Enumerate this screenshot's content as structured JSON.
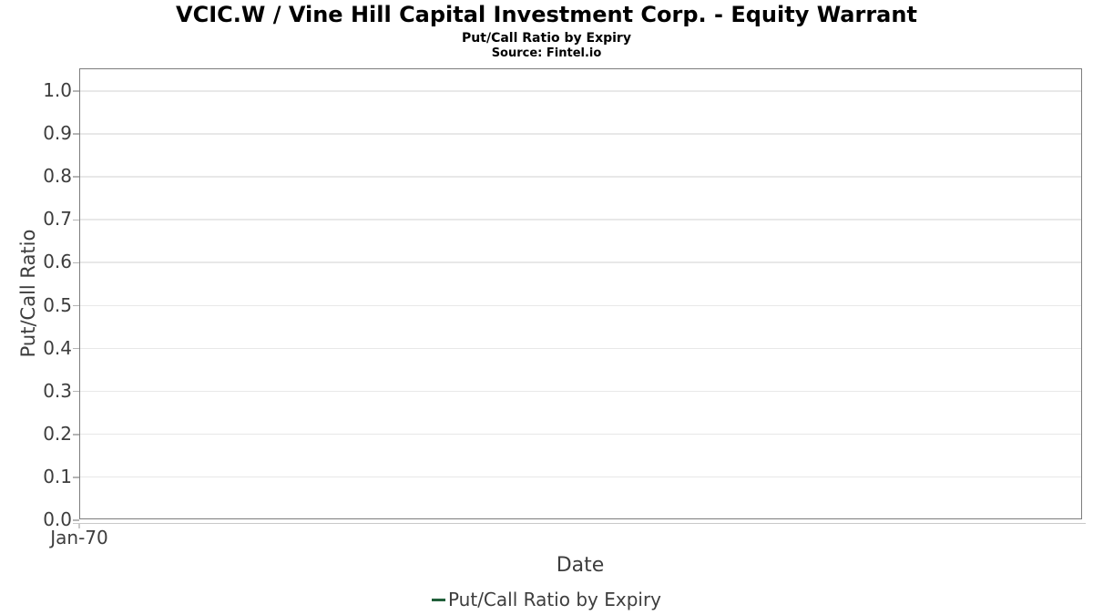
{
  "chart_data": {
    "type": "line",
    "title": "VCIC.W / Vine Hill Capital Investment Corp. - Equity Warrant",
    "subtitle": "Put/Call Ratio by Expiry",
    "source": "Source: Fintel.io",
    "xlabel": "Date",
    "ylabel": "Put/Call Ratio",
    "x_tick_labels": [
      "Jan-70"
    ],
    "y_tick_labels": [
      "0.0",
      "0.1",
      "0.2",
      "0.3",
      "0.4",
      "0.5",
      "0.6",
      "0.7",
      "0.8",
      "0.9",
      "1.0"
    ],
    "ylim": [
      0,
      1.051
    ],
    "grid": true,
    "legend": {
      "position": "bottom",
      "entries": [
        {
          "label": "Put/Call Ratio by Expiry",
          "color": "#21603a",
          "marker": "line"
        }
      ]
    },
    "series": [
      {
        "name": "Put/Call Ratio by Expiry",
        "color": "#21603a",
        "x": [],
        "values": []
      }
    ]
  },
  "colors": {
    "title_text": "#000000",
    "axis_text": "#3d3d3d",
    "border": "#7d7d7d",
    "gridline": "#e8e8e8",
    "tick": "#b5b5b5",
    "axis_line": "#c9c9c9",
    "background": "#ffffff",
    "legend_green": "#21603a"
  }
}
